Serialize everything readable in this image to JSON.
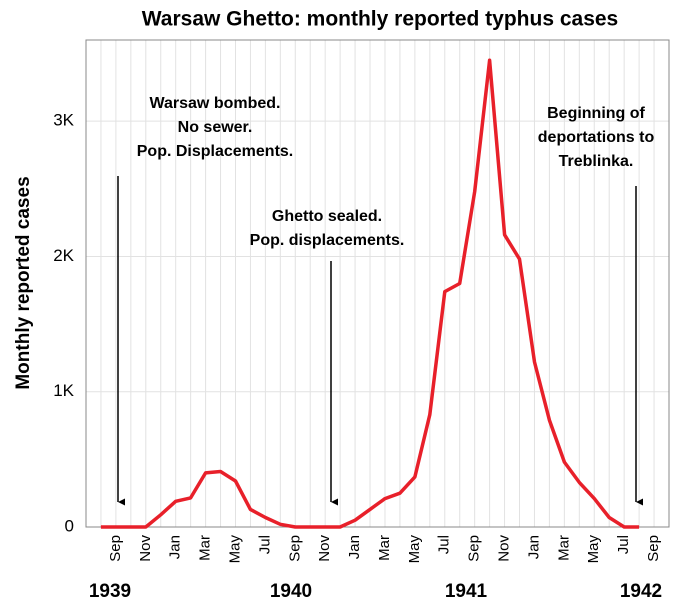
{
  "chart_data": {
    "type": "line",
    "title": "Warsaw Ghetto: monthly reported typhus cases",
    "y_label": "Monthly reported cases",
    "categories": [
      null,
      null,
      "Sep",
      null,
      "Nov",
      null,
      "Jan",
      null,
      "Mar",
      null,
      "May",
      null,
      "Jul",
      null,
      "Sep",
      null,
      "Nov",
      null,
      "Jan",
      null,
      "Mar",
      null,
      "May",
      null,
      "Jul",
      null,
      "Sep",
      null,
      "Nov",
      null,
      "Jan",
      null,
      "Mar",
      null,
      "May",
      null,
      "Jul",
      null,
      "Sep",
      null
    ],
    "values": [
      null,
      0,
      0,
      0,
      0,
      90,
      190,
      215,
      400,
      410,
      340,
      130,
      70,
      20,
      0,
      0,
      0,
      0,
      50,
      130,
      210,
      250,
      370,
      830,
      1740,
      1800,
      2480,
      3450,
      2160,
      1980,
      1220,
      790,
      480,
      330,
      210,
      70,
      0,
      0,
      null,
      null
    ],
    "color": "#e8202a",
    "ylim": [
      0,
      3600
    ],
    "yticks": [
      0,
      {
        "value": 1000,
        "label": "1K"
      },
      {
        "value": 2000,
        "label": "2K"
      },
      {
        "value": 3000,
        "label": "3K"
      }
    ],
    "grid": true,
    "year_labels": [
      "1939",
      "1940",
      "1941",
      "1942"
    ],
    "annotations": [
      [
        "Warsaw bombed.",
        "No sewer.",
        "Pop. Displacements."
      ],
      [
        "Ghetto sealed.",
        "Pop. displacements."
      ],
      [
        "Beginning of",
        "deportations to",
        "Treblinka."
      ]
    ]
  }
}
